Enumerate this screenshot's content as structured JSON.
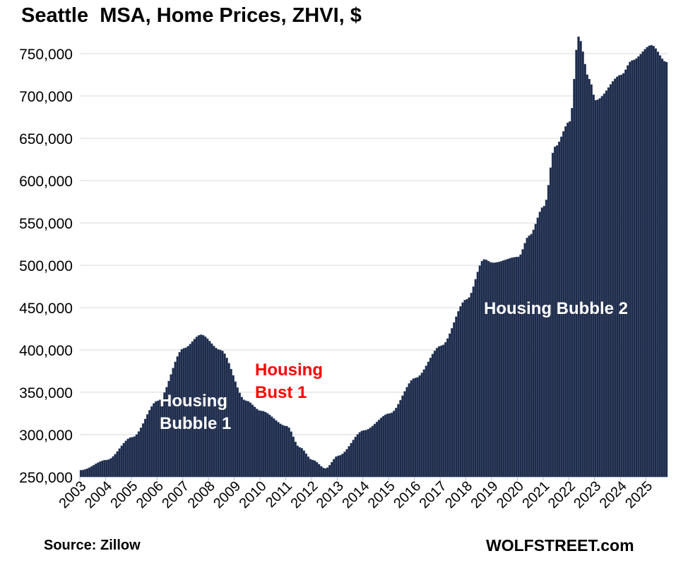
{
  "title": "Seattle  MSA, Home Prices, ZHVI, $",
  "source": "Source: Zillow",
  "brand": "WOLFSTREET.com",
  "colors": {
    "bar": "#1f2a44",
    "bar_edge": "#5a78b4",
    "grid": "#d9d9d9",
    "annotation_white": "#ffffff",
    "annotation_red": "#ff0000"
  },
  "annotations": {
    "bubble1": [
      "Housing",
      "Bubble 1"
    ],
    "bust1": [
      "Housing",
      "Bust 1"
    ],
    "bubble2": [
      "Housing Bubble 2"
    ]
  },
  "chart_data": {
    "type": "bar",
    "title": "Seattle  MSA, Home Prices, ZHVI, $",
    "xlabel": "",
    "ylabel": "",
    "ylim": [
      250000,
      775000
    ],
    "yticks": [
      250000,
      300000,
      350000,
      400000,
      450000,
      500000,
      550000,
      600000,
      650000,
      700000,
      750000
    ],
    "ytick_labels": [
      "250,000",
      "300,000",
      "350,000",
      "400,000",
      "450,000",
      "500,000",
      "550,000",
      "600,000",
      "650,000",
      "700,000",
      "750,000"
    ],
    "xtick_labels": [
      "2003",
      "2004",
      "2005",
      "2006",
      "2007",
      "2008",
      "2009",
      "2010",
      "2011",
      "2012",
      "2013",
      "2014",
      "2015",
      "2016",
      "2017",
      "2018",
      "2019",
      "2020",
      "2021",
      "2022",
      "2023",
      "2024",
      "2025"
    ],
    "grid": true,
    "legend": "none",
    "frequency": "monthly",
    "start": "2003-01",
    "anchors": [
      [
        "2003-01",
        258000
      ],
      [
        "2004-01",
        270000
      ],
      [
        "2005-01",
        297000
      ],
      [
        "2006-01",
        340000
      ],
      [
        "2007-01",
        402000
      ],
      [
        "2007-09",
        418000
      ],
      [
        "2008-06",
        400000
      ],
      [
        "2009-06",
        340000
      ],
      [
        "2010-01",
        328000
      ],
      [
        "2011-01",
        310000
      ],
      [
        "2011-07",
        285000
      ],
      [
        "2012-01",
        270000
      ],
      [
        "2012-07",
        260000
      ],
      [
        "2013-01",
        275000
      ],
      [
        "2014-01",
        305000
      ],
      [
        "2015-01",
        325000
      ],
      [
        "2016-01",
        367000
      ],
      [
        "2017-01",
        405000
      ],
      [
        "2018-01",
        460000
      ],
      [
        "2018-09",
        507000
      ],
      [
        "2019-01",
        503000
      ],
      [
        "2020-01",
        510000
      ],
      [
        "2020-06",
        535000
      ],
      [
        "2021-01",
        570000
      ],
      [
        "2021-06",
        640000
      ],
      [
        "2022-01",
        670000
      ],
      [
        "2022-05",
        770000
      ],
      [
        "2022-10",
        720000
      ],
      [
        "2023-01",
        695000
      ],
      [
        "2024-01",
        725000
      ],
      [
        "2024-06",
        742000
      ],
      [
        "2025-03",
        760000
      ],
      [
        "2025-10",
        740000
      ]
    ]
  }
}
